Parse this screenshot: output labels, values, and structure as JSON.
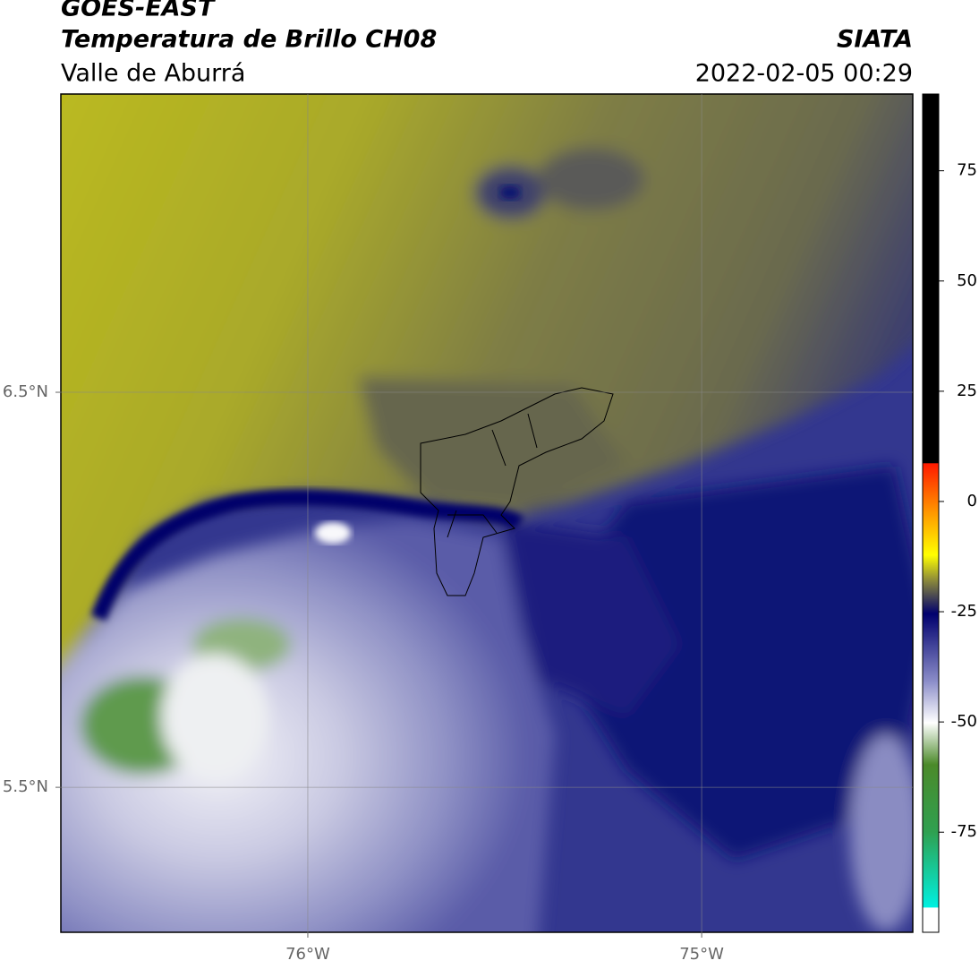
{
  "chart_data": {
    "type": "contour-map",
    "title": "GOES-EAST",
    "subtitle": "Temperatura de Brillo CH08",
    "region": "Valle de Aburrá",
    "source": "SIATA",
    "timestamp": "2022-02-05 00:29",
    "xlim": [
      -76.627,
      -74.464
    ],
    "ylim": [
      5.133,
      7.255
    ],
    "xticks": [
      {
        "value": -76,
        "label": "76°W"
      },
      {
        "value": -75,
        "label": "75°W"
      }
    ],
    "yticks": [
      {
        "value": 6.5,
        "label": "6.5°N"
      },
      {
        "value": 5.5,
        "label": "5.5°N"
      }
    ],
    "grid": true,
    "colorbar": {
      "clim": [
        -97.7,
        92.4
      ],
      "ticks": [
        75,
        50,
        25,
        0,
        -25,
        -50,
        -75
      ]
    }
  }
}
